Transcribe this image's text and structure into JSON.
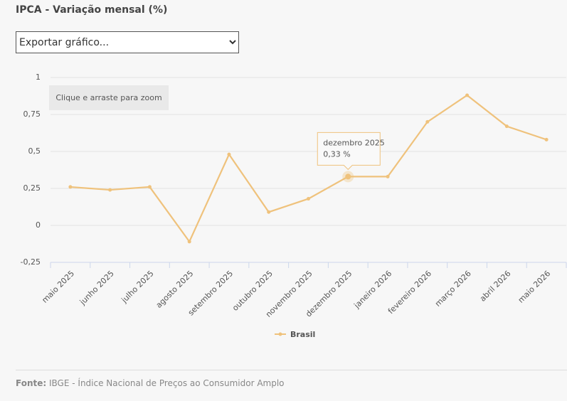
{
  "title": "IPCA - Variação mensal (%)",
  "export_menu": "Exportar gráfico...",
  "zoom_hint": "Clique e arraste para zoom",
  "source_label": "Fonte:",
  "source_text": "IBGE - Índice Nacional de Preços ao Consumidor Amplo",
  "chart_data": {
    "type": "line",
    "categories": [
      "maio 2025",
      "junho 2025",
      "julho 2025",
      "agosto 2025",
      "setembro 2025",
      "outubro 2025",
      "novembro 2025",
      "dezembro 2025",
      "janeiro 2026",
      "fevereiro 2026",
      "março 2026",
      "abril 2026",
      "maio 2026"
    ],
    "series": [
      {
        "name": "Brasil",
        "color": "#efc27c",
        "values": [
          0.26,
          0.24,
          0.26,
          -0.11,
          0.48,
          0.09,
          0.18,
          0.33,
          0.33,
          0.7,
          0.88,
          0.67,
          0.58
        ]
      }
    ],
    "ylim": [
      -0.25,
      1
    ],
    "yticks": [
      {
        "value": -0.25,
        "label": "-0,25"
      },
      0,
      {
        "value": 0.25,
        "label": "0,25"
      },
      {
        "value": 0.5,
        "label": "0,5"
      },
      {
        "value": 0.75,
        "label": "0,75"
      },
      1
    ],
    "grid": true,
    "tooltip": {
      "label": "dezembro 2025",
      "value": 0.33,
      "value_label": "0,33 %"
    }
  }
}
